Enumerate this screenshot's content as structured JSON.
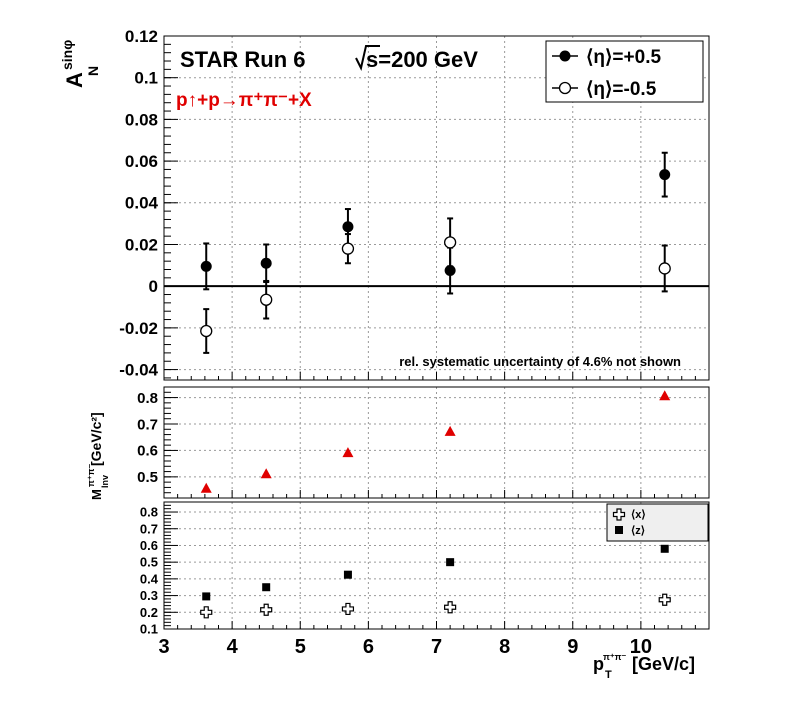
{
  "chart_data": [
    {
      "type": "scatter",
      "title": "STAR Run 6",
      "title_energy": "s=200 GeV",
      "subtitle": "p↑+p→π⁺π⁻+X",
      "ylabel": "A_N^sinφ",
      "annotation": "rel. systematic uncertainty of 4.6% not shown",
      "xlim": [
        3,
        11
      ],
      "ylim": [
        -0.045,
        0.12
      ],
      "yticks": [
        -0.04,
        -0.02,
        0,
        0.02,
        0.04,
        0.06,
        0.08,
        0.1,
        0.12
      ],
      "yticklabels": [
        "-0.04",
        "-0.02",
        "0",
        "0.02",
        "0.04",
        "0.06",
        "0.08",
        "0.1",
        "0.12"
      ],
      "grid": true,
      "legend_position": "top-right",
      "series": [
        {
          "name": "⟨η⟩=+0.5",
          "marker": "filled-circle",
          "color": "#000000",
          "x": [
            3.62,
            4.5,
            5.7,
            7.2,
            10.35
          ],
          "y": [
            0.0095,
            0.011,
            0.0285,
            0.0075,
            0.0535
          ],
          "err": [
            0.011,
            0.009,
            0.0085,
            0.011,
            0.0105
          ]
        },
        {
          "name": "⟨η⟩=-0.5",
          "marker": "open-circle",
          "color": "#000000",
          "x": [
            3.62,
            4.5,
            5.7,
            7.2,
            10.35
          ],
          "y": [
            -0.0215,
            -0.0065,
            0.018,
            0.021,
            0.0085
          ],
          "err": [
            0.0105,
            0.009,
            0.007,
            0.0115,
            0.011
          ]
        }
      ]
    },
    {
      "type": "scatter",
      "ylabel": "M_Inv^π⁺π⁻ [GeV/c²]",
      "xlim": [
        3,
        11
      ],
      "ylim": [
        0.42,
        0.84
      ],
      "yticks": [
        0.5,
        0.6,
        0.7,
        0.8
      ],
      "yticklabels": [
        "0.5",
        "0.6",
        "0.7",
        "0.8"
      ],
      "grid": true,
      "series": [
        {
          "marker": "filled-triangle",
          "color": "#e00000",
          "x": [
            3.62,
            4.5,
            5.7,
            7.2,
            10.35
          ],
          "y": [
            0.455,
            0.51,
            0.59,
            0.67,
            0.805
          ]
        }
      ]
    },
    {
      "type": "scatter",
      "xlabel": "p_T^π⁺π⁻ [GeV/c]",
      "xlim": [
        3,
        11
      ],
      "xticks": [
        3,
        4,
        5,
        6,
        7,
        8,
        9,
        10
      ],
      "xticklabels": [
        "3",
        "4",
        "5",
        "6",
        "7",
        "8",
        "9",
        "10"
      ],
      "ylim": [
        0.1,
        0.86
      ],
      "yticks": [
        0.1,
        0.2,
        0.3,
        0.4,
        0.5,
        0.6,
        0.7,
        0.8
      ],
      "yticklabels": [
        "0.1",
        "0.2",
        "0.3",
        "0.4",
        "0.5",
        "0.6",
        "0.7",
        "0.8"
      ],
      "grid": true,
      "legend_position": "top-right",
      "series": [
        {
          "name": "⟨x⟩",
          "marker": "open-cross",
          "color": "#000000",
          "x": [
            3.62,
            4.5,
            5.7,
            7.2,
            10.35
          ],
          "y": [
            0.2,
            0.215,
            0.22,
            0.23,
            0.275
          ]
        },
        {
          "name": "⟨z⟩",
          "marker": "filled-square",
          "color": "#000000",
          "x": [
            3.62,
            4.5,
            5.7,
            7.2,
            10.35
          ],
          "y": [
            0.295,
            0.35,
            0.425,
            0.5,
            0.58
          ]
        }
      ]
    }
  ]
}
